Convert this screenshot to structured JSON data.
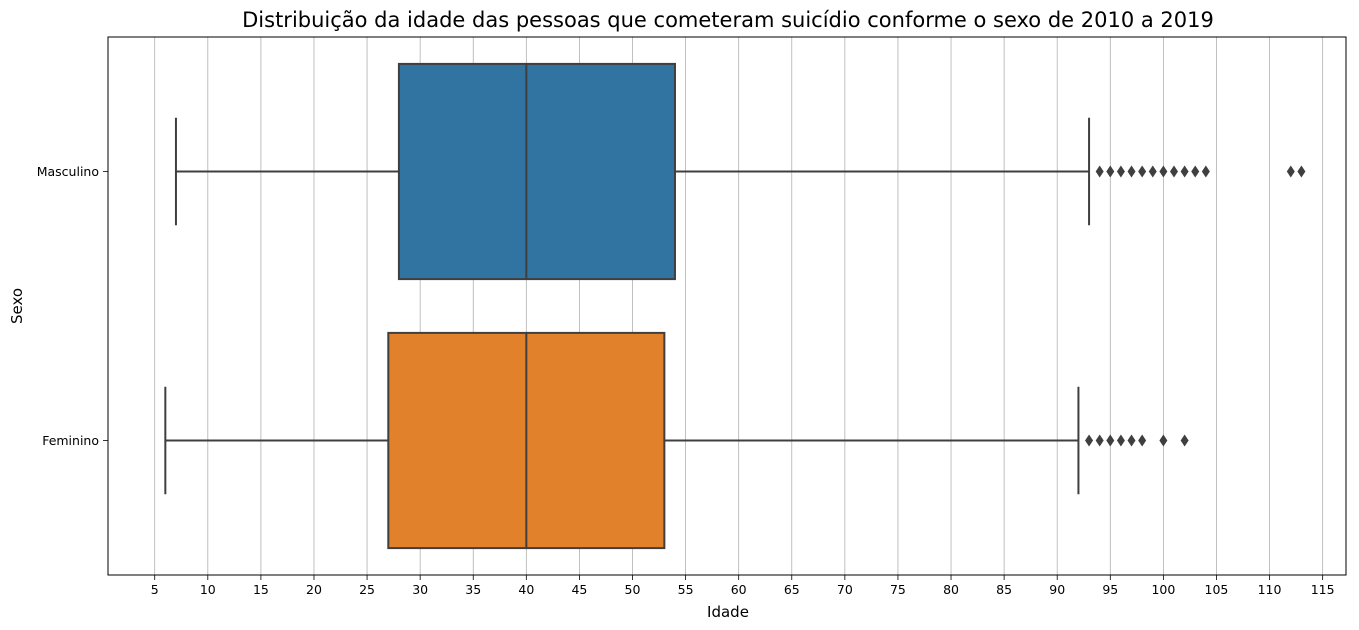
{
  "chart_data": {
    "type": "boxplot",
    "orientation": "horizontal",
    "title": "Distribuição da idade das pessoas que cometeram suicídio conforme o sexo de 2010 a 2019",
    "xlabel": "Idade",
    "ylabel": "Sexo",
    "xlim": [
      0.6,
      117.2
    ],
    "xticks": [
      5,
      10,
      15,
      20,
      25,
      30,
      35,
      40,
      45,
      50,
      55,
      60,
      65,
      70,
      75,
      80,
      85,
      90,
      95,
      100,
      105,
      110,
      115
    ],
    "grid": "vertical",
    "categories": [
      "Masculino",
      "Feminino"
    ],
    "series": [
      {
        "name": "Masculino",
        "color": "#3274a1",
        "whisker_low": 7,
        "q1": 28,
        "median": 40,
        "q3": 54,
        "whisker_high": 93,
        "outliers": [
          94,
          95,
          96,
          97,
          98,
          99,
          100,
          101,
          102,
          103,
          104,
          112,
          113
        ]
      },
      {
        "name": "Feminino",
        "color": "#e1812c",
        "whisker_low": 6,
        "q1": 27,
        "median": 40,
        "q3": 53,
        "whisker_high": 92,
        "outliers": [
          93,
          94,
          95,
          96,
          97,
          98,
          100,
          102
        ]
      }
    ]
  }
}
